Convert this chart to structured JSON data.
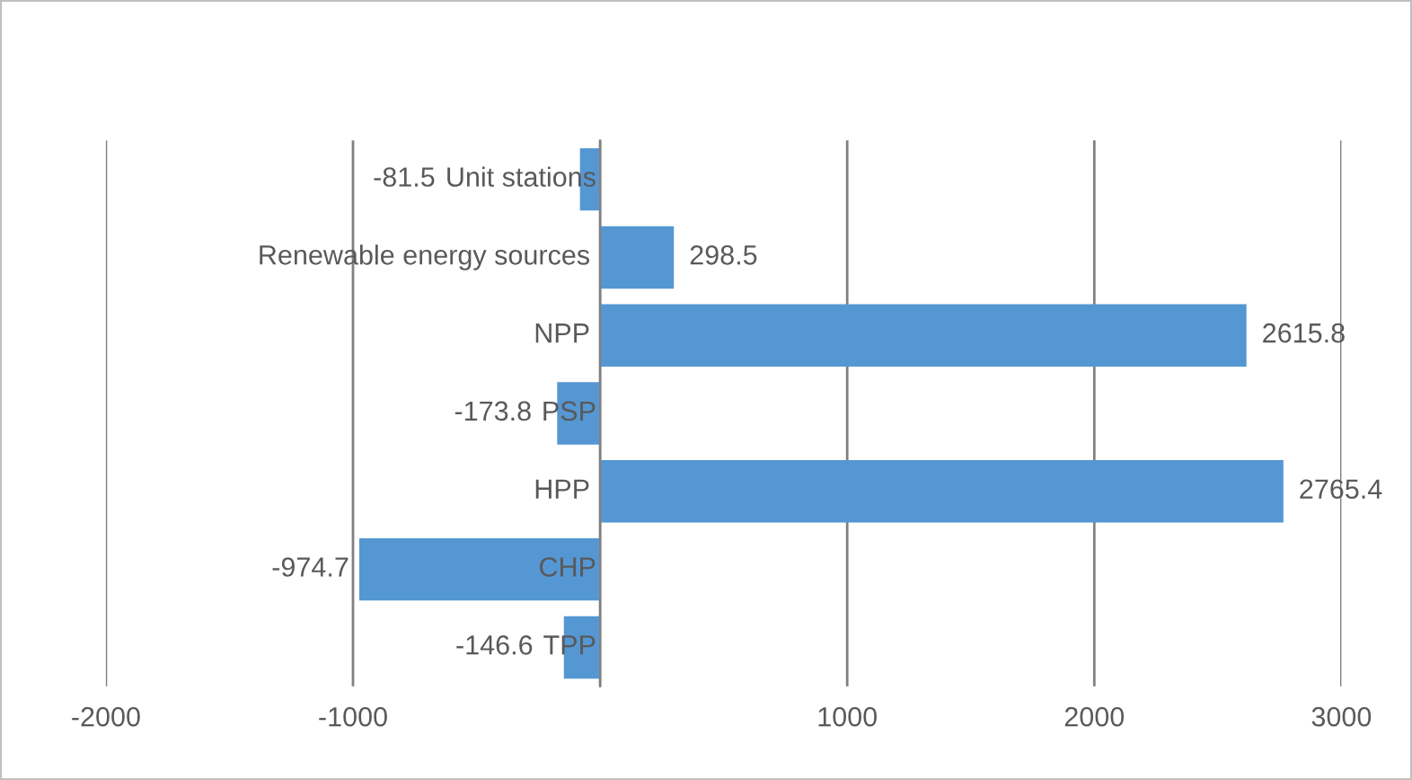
{
  "chart_data": {
    "type": "bar",
    "orientation": "horizontal",
    "categories": [
      "Unit stations",
      "Renewable energy sources",
      "NPP",
      "PSP",
      "HPP",
      "CHP",
      "TPP"
    ],
    "values": [
      -81.5,
      298.5,
      2615.8,
      -173.8,
      2765.4,
      -974.7,
      -146.6
    ],
    "value_labels": [
      null,
      "298.5",
      "2615.8",
      "-173.8",
      "2765.4",
      "-974.7",
      "-146.6"
    ],
    "annotations": [
      "-81.5"
    ],
    "color": "#5597d3",
    "grid": "x",
    "xlim": [
      -2000,
      3000
    ],
    "xticks": [
      -2000,
      -1000,
      {
        "value": 0,
        "label": null
      },
      1000,
      2000,
      3000
    ]
  }
}
